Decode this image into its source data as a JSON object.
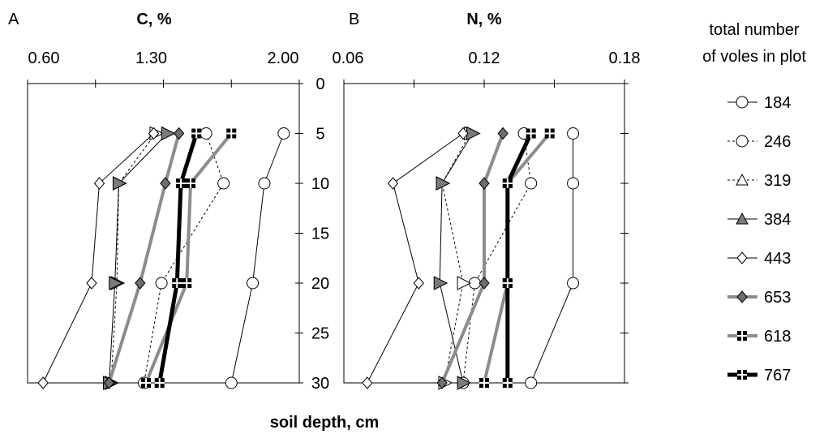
{
  "chart_data": [
    {
      "type": "line",
      "panel_label": "A",
      "title": "C, %",
      "x_ticks": [
        "0.60",
        "1.30",
        "2.00"
      ],
      "xlim": [
        0.6,
        2.0
      ],
      "ylim": [
        0,
        30
      ],
      "y_ticks": [
        "0",
        "5",
        "10",
        "15",
        "20",
        "25",
        "30"
      ],
      "depths": [
        5,
        10,
        20,
        30
      ],
      "series": [
        {
          "name": "184",
          "values": [
            1.92,
            1.82,
            1.76,
            1.65
          ]
        },
        {
          "name": "246",
          "values": [
            1.52,
            1.61,
            1.29,
            1.2
          ]
        },
        {
          "name": "319",
          "values": [
            1.26,
            1.07,
            1.06,
            1.03
          ]
        },
        {
          "name": "384",
          "values": [
            1.32,
            1.07,
            1.05,
            1.02
          ]
        },
        {
          "name": "443",
          "values": [
            1.25,
            0.97,
            0.93,
            0.68
          ]
        },
        {
          "name": "653",
          "values": [
            1.38,
            1.31,
            1.18,
            1.02
          ]
        },
        {
          "name": "618",
          "values": [
            1.65,
            1.44,
            1.42,
            1.21
          ]
        },
        {
          "name": "767",
          "values": [
            1.47,
            1.39,
            1.37,
            1.28
          ]
        }
      ]
    },
    {
      "type": "line",
      "panel_label": "B",
      "title": "N, %",
      "x_ticks": [
        "0.06",
        "0.12",
        "0.18"
      ],
      "xlim": [
        0.06,
        0.18
      ],
      "ylim": [
        0,
        30
      ],
      "y_ticks": [
        "0",
        "5",
        "10",
        "15",
        "20",
        "25",
        "30"
      ],
      "depths": [
        5,
        10,
        20,
        30
      ],
      "series": [
        {
          "name": "184",
          "values": [
            0.158,
            0.158,
            0.158,
            0.14
          ]
        },
        {
          "name": "246",
          "values": [
            0.137,
            0.14,
            0.116,
            0.111
          ]
        },
        {
          "name": "319",
          "values": [
            0.114,
            0.102,
            0.111,
            0.103
          ]
        },
        {
          "name": "384",
          "values": [
            0.115,
            0.102,
            0.101,
            0.111
          ]
        },
        {
          "name": "443",
          "values": [
            0.111,
            0.081,
            0.092,
            0.07
          ]
        },
        {
          "name": "653",
          "values": [
            0.128,
            0.12,
            0.12,
            0.102
          ]
        },
        {
          "name": "618",
          "values": [
            0.148,
            0.13,
            0.13,
            0.12
          ]
        },
        {
          "name": "767",
          "values": [
            0.14,
            0.13,
            0.13,
            0.13
          ]
        }
      ]
    }
  ],
  "ylabel": "soil depth, cm",
  "legend": {
    "title_line1": "total number",
    "title_line2": "of voles in plot"
  },
  "styles": {
    "184": {
      "color": "#000000",
      "width": 1,
      "dash": "",
      "marker": "circle",
      "fill": "#ffffff"
    },
    "246": {
      "color": "#000000",
      "width": 1,
      "dash": "3,3",
      "marker": "circle",
      "fill": "#ffffff"
    },
    "319": {
      "color": "#000000",
      "width": 1,
      "dash": "3,3",
      "marker": "triangle",
      "fill": "#ffffff"
    },
    "384": {
      "color": "#000000",
      "width": 1,
      "dash": "",
      "marker": "triangle",
      "fill": "#7a7a7a"
    },
    "443": {
      "color": "#000000",
      "width": 1,
      "dash": "",
      "marker": "diamond",
      "fill": "#ffffff"
    },
    "653": {
      "color": "#8c8c8c",
      "width": 4,
      "dash": "",
      "marker": "diamond",
      "fill": "#6e6e6e"
    },
    "618": {
      "color": "#8c8c8c",
      "width": 4,
      "dash": "",
      "marker": "plus",
      "fill": "#000000"
    },
    "767": {
      "color": "#000000",
      "width": 5,
      "dash": "",
      "marker": "plus",
      "fill": "#000000"
    }
  }
}
